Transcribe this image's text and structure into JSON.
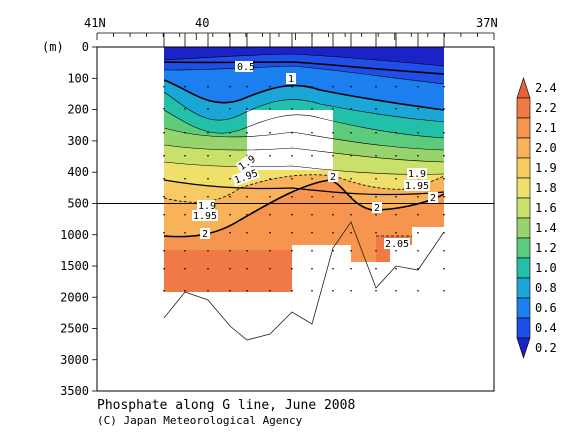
{
  "chart_data": {
    "type": "heatmap",
    "title": "Phosphate along G line, June 2008",
    "credit": "(C) Japan Meteorological Agency",
    "ylabel": "(m)",
    "y_upper_ticks": [
      "0",
      "100",
      "200",
      "300",
      "400",
      "500"
    ],
    "y_lower_ticks": [
      "1000",
      "1500",
      "2000",
      "2500",
      "3000",
      "3500"
    ],
    "x_labels": [
      "41N",
      "40",
      "37N"
    ],
    "colorbar": {
      "labels": [
        "2.4",
        "2.2",
        "2.1",
        "2.0",
        "1.9",
        "1.8",
        "1.6",
        "1.4",
        "1.2",
        "1.0",
        "0.8",
        "0.6",
        "0.4",
        "0.2"
      ],
      "colors": [
        "#e8603a",
        "#f07a45",
        "#f5954f",
        "#f7b25a",
        "#f7cb63",
        "#eee06a",
        "#c9e06a",
        "#97d46d",
        "#5ccb7c",
        "#22c0a8",
        "#1aa6d6",
        "#1b7ff0",
        "#1f4fe6",
        "#1a22c8"
      ]
    },
    "stations_x": [
      0.0,
      0.33,
      0.5,
      0.67,
      0.83,
      1.0,
      1.33,
      1.5,
      1.83,
      2.0,
      2.33,
      2.5,
      2.83
    ],
    "contours": [
      {
        "value": "0.5",
        "depth_m": [
          45,
          40,
          35,
          32,
          30,
          30,
          32,
          36,
          40,
          42,
          45,
          48,
          52
        ]
      },
      {
        "value": "1",
        "depth_m": [
          80,
          130,
          150,
          110,
          90,
          70,
          60,
          70,
          90,
          110,
          130,
          140,
          150
        ]
      },
      {
        "value": "1.9",
        "depth_m": [
          490,
          470,
          420,
          400,
          395,
          385,
          370,
          360,
          380,
          400,
          415,
          420,
          380
        ]
      },
      {
        "value": "1.95",
        "depth_m": [
          500,
          495,
          475,
          440,
          420,
          410,
          400,
          395,
          410,
          430,
          440,
          440,
          400
        ]
      },
      {
        "value": "2",
        "depth_m": [
          1000,
          900,
          700,
          560,
          480,
          430,
          420,
          425,
          560,
          520,
          500,
          500,
          470
        ]
      },
      {
        "value": "2.05",
        "depth_m": [
          1500,
          1500,
          1500,
          1500,
          1500,
          1500,
          1500,
          1500,
          1050,
          1050,
          1050,
          1050,
          1050
        ]
      }
    ],
    "bottom_depth_m": [
      2300,
      1900,
      2100,
      2450,
      2650,
      2580,
      2200,
      2440,
      1300,
      800,
      1850,
      1500,
      1600,
      1000
    ],
    "separator_depth_m": 500
  }
}
